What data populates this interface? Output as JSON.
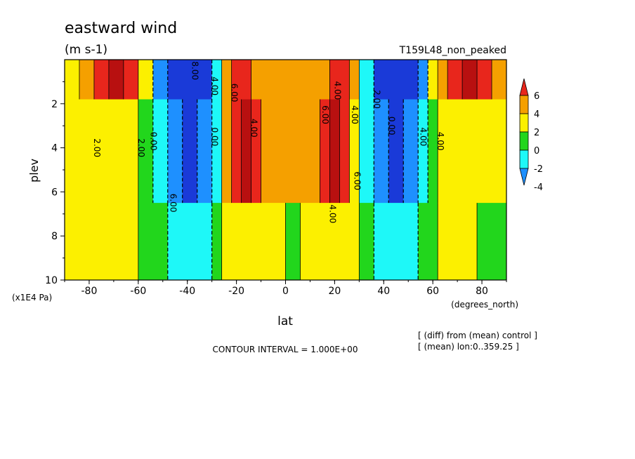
{
  "chart_data": {
    "type": "heatmap",
    "title": "eastward wind",
    "units": "(m s-1)",
    "run_label": "T159L48_non_peaked",
    "xlabel": "lat",
    "x_units": "(degrees_north)",
    "ylabel": "plev",
    "y_units": "(x1E4 Pa)",
    "x_range": [
      -90,
      90
    ],
    "y_range": [
      0,
      10
    ],
    "y_reversed": true,
    "x_ticks": [
      "-80",
      "-60",
      "-40",
      "-20",
      "0",
      "20",
      "40",
      "60",
      "80"
    ],
    "y_ticks": [
      "2",
      "4",
      "6",
      "8",
      "10"
    ],
    "colorbar": {
      "levels": [
        "6",
        "4",
        "2",
        "0",
        "-2",
        "-4"
      ],
      "colors": [
        "#e8261c",
        "#f5a000",
        "#fcf000",
        "#22d61c",
        "#1ef8f8",
        "#1e90ff",
        "#1a3ad8",
        "#b81010"
      ]
    },
    "contour_interval_text": "CONTOUR INTERVAL = 1.000E+00",
    "footnotes": [
      "[ (diff) from (mean) control ]",
      "[ (mean) lon:0..359.25 ]"
    ],
    "contour_labels": [
      "2.00",
      "2.00",
      "0.00",
      "6.00",
      "4.00",
      "0.00",
      "4.00",
      "8.00",
      "6.00",
      "4.00",
      "4.00",
      "2.00",
      "0.00",
      "6.00",
      "6.00",
      "4.00",
      "4.00",
      "4.00"
    ],
    "series": [
      {
        "name": "band_lat",
        "values": [
          -90,
          -84,
          -78,
          -72,
          -66,
          -60,
          -54,
          -48,
          -42,
          -36,
          -30,
          -26,
          -22,
          -18,
          -14,
          -10,
          -6,
          0,
          6,
          10,
          14,
          18,
          22,
          26,
          30,
          36,
          42,
          48,
          54,
          58,
          62,
          66,
          72,
          78,
          84,
          90
        ]
      },
      {
        "name": "wind_upper",
        "values": [
          1,
          3,
          6,
          8,
          6,
          2,
          -4,
          -6,
          -7,
          -6,
          -2,
          3,
          5,
          5,
          4,
          3,
          3,
          3,
          3,
          3,
          4,
          5,
          5,
          3,
          -2,
          -6,
          -7,
          -6,
          -4,
          1,
          3,
          6,
          8,
          6,
          3,
          1
        ]
      },
      {
        "name": "wind_mid",
        "values": [
          1,
          1.5,
          2,
          2.5,
          2,
          0.5,
          -2,
          -4,
          -6,
          -5,
          -2,
          3,
          5,
          7,
          6,
          4,
          3,
          3,
          3,
          4,
          6,
          7,
          5,
          2,
          -2,
          -5,
          -6,
          -5,
          -2,
          0.5,
          2,
          2.5,
          2,
          1.5,
          1,
          0.5
        ]
      },
      {
        "name": "wind_lower",
        "values": [
          1,
          1,
          1,
          1.5,
          1,
          0,
          -1,
          -2,
          -3,
          -3,
          -1,
          1,
          2,
          2,
          2,
          1.5,
          1,
          0.5,
          1,
          1.5,
          2,
          2,
          2,
          1,
          -1,
          -3,
          -3,
          -2,
          -1,
          0,
          1,
          1.5,
          1,
          0,
          -1,
          -2
        ]
      }
    ]
  }
}
